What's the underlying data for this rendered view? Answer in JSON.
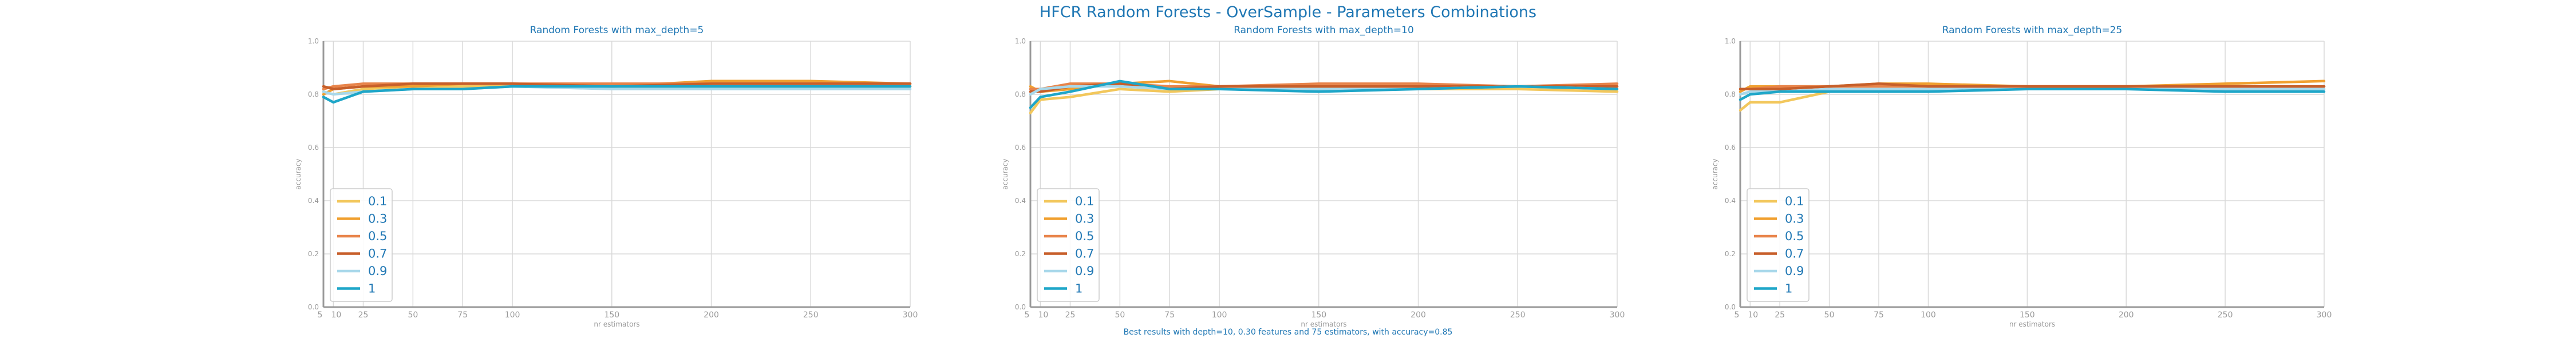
{
  "figure": {
    "suptitle": "HFCR Random Forests - OverSample - Parameters Combinations",
    "footnote": "Best results with depth=10, 0.30 features and 75 estimators, with accuracy=0.85"
  },
  "colors": {
    "title": "#1f77b4",
    "axis_text": "#999999",
    "grid": "#d9d9d9",
    "spine": "#999999",
    "series": [
      "#f2c75c",
      "#f0a030",
      "#e8844a",
      "#c75f2a",
      "#a8d8ea",
      "#1ea6c8"
    ]
  },
  "chart_data": [
    {
      "type": "line",
      "title": "Random Forests with max_depth=5",
      "xlabel": "nr estimators",
      "ylabel": "accuracy",
      "x": [
        5,
        10,
        25,
        50,
        75,
        100,
        150,
        200,
        250,
        300
      ],
      "xlim": [
        5,
        300
      ],
      "ylim": [
        0,
        1
      ],
      "xticks": [
        "5",
        "10",
        "25",
        "50",
        "75",
        "100",
        "150",
        "200",
        "250",
        "300"
      ],
      "yticks": [
        "0.0",
        "0.2",
        "0.4",
        "0.6",
        "0.8",
        "1.0"
      ],
      "grid": true,
      "legend_position": "lower-left",
      "series": [
        {
          "name": "0.1",
          "values": [
            0.81,
            0.8,
            0.82,
            0.83,
            0.83,
            0.83,
            0.83,
            0.83,
            0.83,
            0.83
          ]
        },
        {
          "name": "0.3",
          "values": [
            0.8,
            0.82,
            0.83,
            0.83,
            0.84,
            0.84,
            0.83,
            0.85,
            0.85,
            0.84
          ]
        },
        {
          "name": "0.5",
          "values": [
            0.82,
            0.83,
            0.84,
            0.84,
            0.84,
            0.84,
            0.84,
            0.84,
            0.84,
            0.84
          ]
        },
        {
          "name": "0.7",
          "values": [
            0.83,
            0.82,
            0.83,
            0.84,
            0.84,
            0.84,
            0.83,
            0.84,
            0.84,
            0.84
          ]
        },
        {
          "name": "0.9",
          "values": [
            0.81,
            0.8,
            0.81,
            0.82,
            0.82,
            0.83,
            0.82,
            0.82,
            0.82,
            0.82
          ]
        },
        {
          "name": "1",
          "values": [
            0.79,
            0.77,
            0.81,
            0.82,
            0.82,
            0.83,
            0.83,
            0.83,
            0.83,
            0.83
          ]
        }
      ]
    },
    {
      "type": "line",
      "title": "Random Forests with max_depth=10",
      "xlabel": "nr estimators",
      "ylabel": "accuracy",
      "x": [
        5,
        10,
        25,
        50,
        75,
        100,
        150,
        200,
        250,
        300
      ],
      "xlim": [
        5,
        300
      ],
      "ylim": [
        0,
        1
      ],
      "xticks": [
        "5",
        "10",
        "25",
        "50",
        "75",
        "100",
        "150",
        "200",
        "250",
        "300"
      ],
      "yticks": [
        "0.0",
        "0.2",
        "0.4",
        "0.6",
        "0.8",
        "1.0"
      ],
      "grid": true,
      "legend_position": "lower-left",
      "series": [
        {
          "name": "0.1",
          "values": [
            0.73,
            0.78,
            0.79,
            0.82,
            0.81,
            0.82,
            0.82,
            0.82,
            0.82,
            0.81
          ]
        },
        {
          "name": "0.3",
          "values": [
            0.83,
            0.81,
            0.82,
            0.84,
            0.85,
            0.83,
            0.83,
            0.83,
            0.83,
            0.83
          ]
        },
        {
          "name": "0.5",
          "values": [
            0.82,
            0.82,
            0.84,
            0.84,
            0.83,
            0.83,
            0.84,
            0.84,
            0.83,
            0.84
          ]
        },
        {
          "name": "0.7",
          "values": [
            0.81,
            0.81,
            0.83,
            0.84,
            0.82,
            0.83,
            0.83,
            0.83,
            0.83,
            0.83
          ]
        },
        {
          "name": "0.9",
          "values": [
            0.8,
            0.82,
            0.83,
            0.83,
            0.82,
            0.82,
            0.82,
            0.82,
            0.83,
            0.82
          ]
        },
        {
          "name": "1",
          "values": [
            0.75,
            0.79,
            0.81,
            0.85,
            0.82,
            0.82,
            0.81,
            0.82,
            0.83,
            0.82
          ]
        }
      ]
    },
    {
      "type": "line",
      "title": "Random Forests with max_depth=25",
      "xlabel": "nr estimators",
      "ylabel": "accuracy",
      "x": [
        5,
        10,
        25,
        50,
        75,
        100,
        150,
        200,
        250,
        300
      ],
      "xlim": [
        5,
        300
      ],
      "ylim": [
        0,
        1
      ],
      "xticks": [
        "5",
        "10",
        "25",
        "50",
        "75",
        "100",
        "150",
        "200",
        "250",
        "300"
      ],
      "yticks": [
        "0.0",
        "0.2",
        "0.4",
        "0.6",
        "0.8",
        "1.0"
      ],
      "grid": true,
      "legend_position": "lower-left",
      "series": [
        {
          "name": "0.1",
          "values": [
            0.74,
            0.77,
            0.77,
            0.81,
            0.81,
            0.82,
            0.82,
            0.82,
            0.82,
            0.82
          ]
        },
        {
          "name": "0.3",
          "values": [
            0.81,
            0.83,
            0.83,
            0.83,
            0.84,
            0.84,
            0.83,
            0.83,
            0.84,
            0.85
          ]
        },
        {
          "name": "0.5",
          "values": [
            0.82,
            0.82,
            0.83,
            0.83,
            0.83,
            0.83,
            0.83,
            0.83,
            0.83,
            0.83
          ]
        },
        {
          "name": "0.7",
          "values": [
            0.82,
            0.82,
            0.82,
            0.83,
            0.84,
            0.83,
            0.83,
            0.83,
            0.83,
            0.83
          ]
        },
        {
          "name": "0.9",
          "values": [
            0.8,
            0.81,
            0.81,
            0.82,
            0.82,
            0.82,
            0.82,
            0.82,
            0.82,
            0.82
          ]
        },
        {
          "name": "1",
          "values": [
            0.78,
            0.8,
            0.81,
            0.81,
            0.81,
            0.81,
            0.82,
            0.82,
            0.81,
            0.81
          ]
        }
      ]
    }
  ]
}
